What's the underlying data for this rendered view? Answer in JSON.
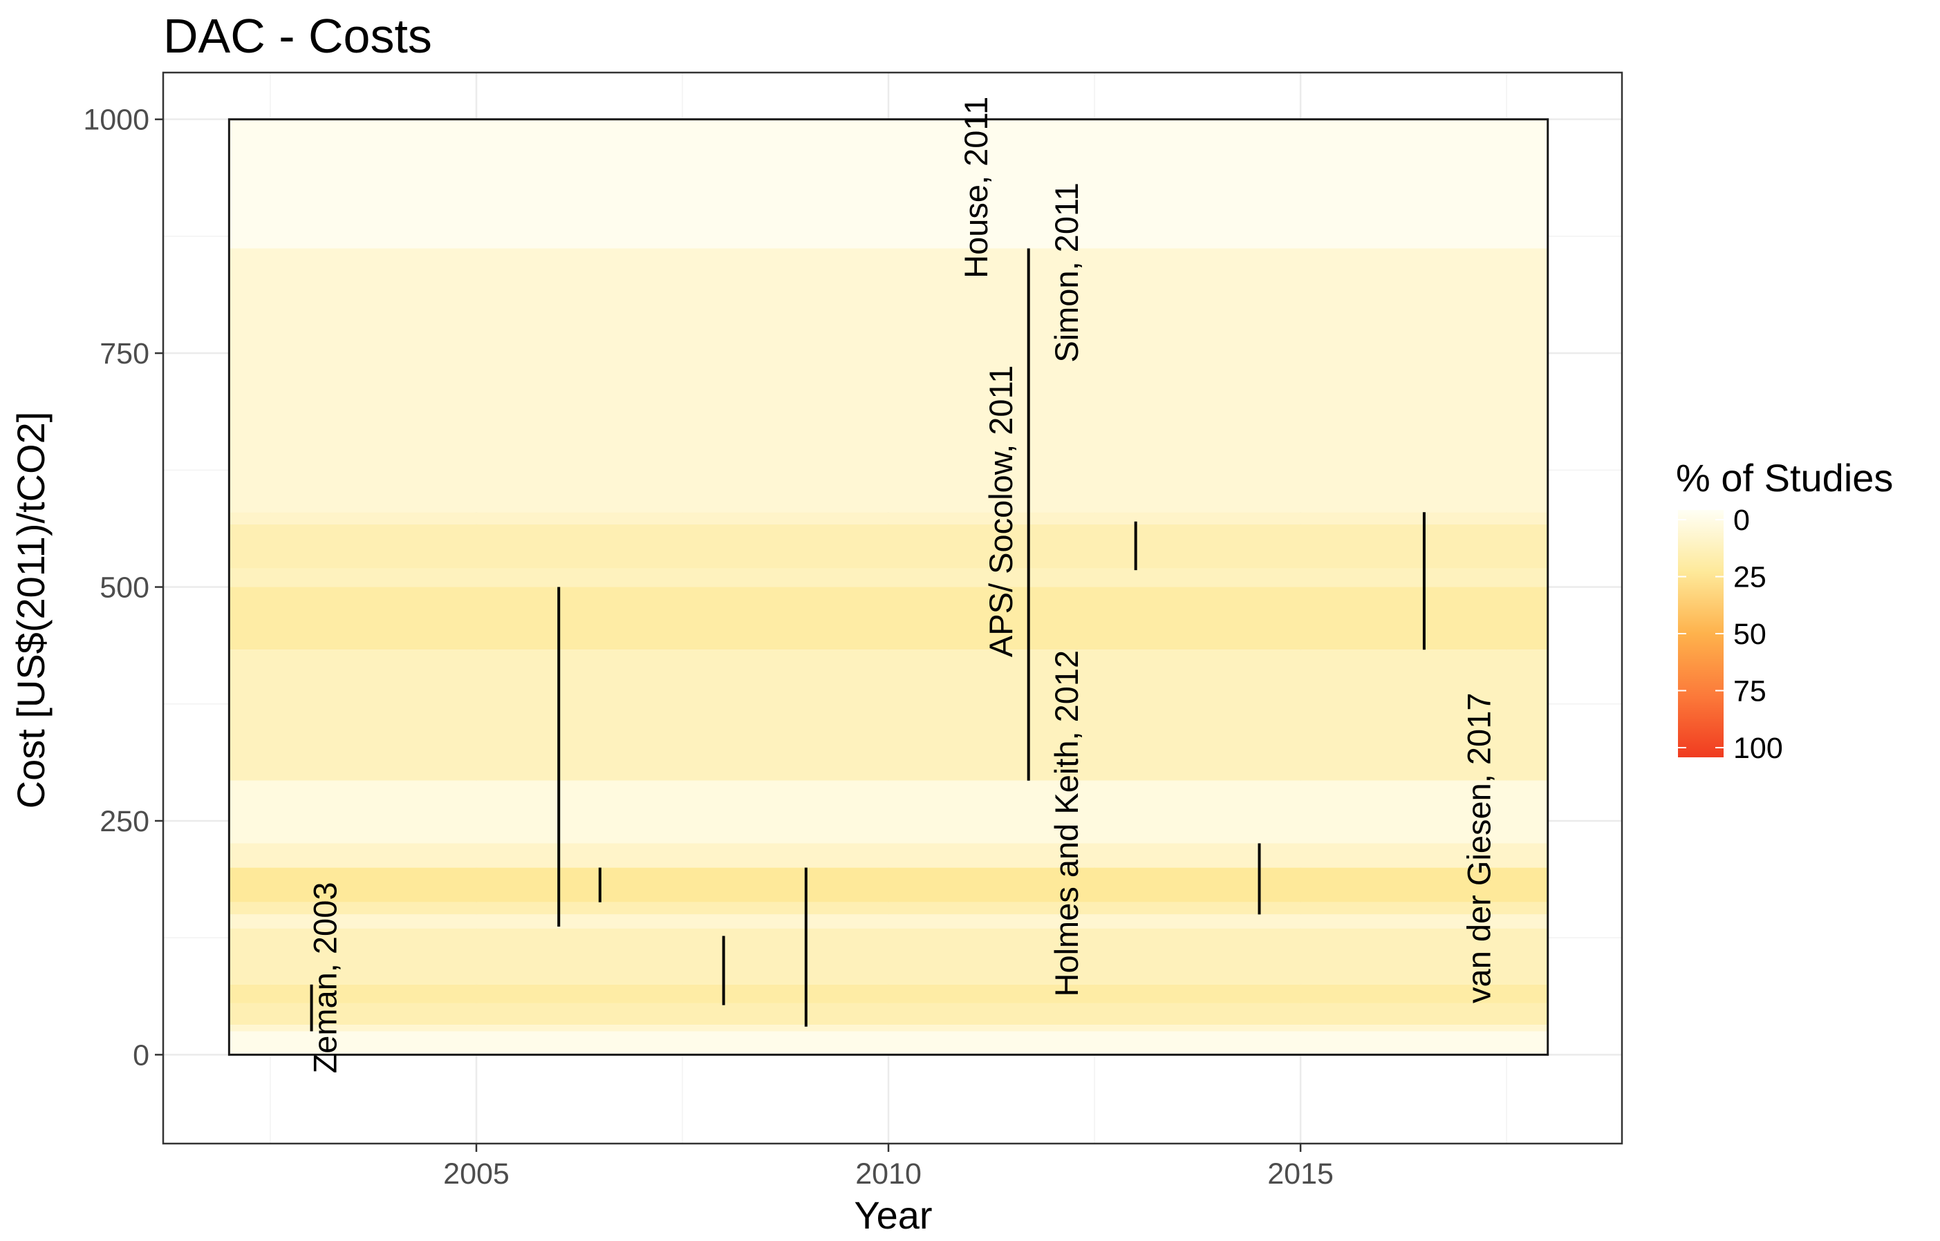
{
  "chart_data": {
    "type": "heatmap",
    "title": "DAC - Costs",
    "xlabel": "Year",
    "ylabel": "Cost [US$(2011)/tCO2]",
    "xlim": [
      2001.2,
      2018.9
    ],
    "ylim": [
      -95,
      1050
    ],
    "x_ticks": [
      2005,
      2010,
      2015
    ],
    "y_ticks": [
      0,
      250,
      500,
      750,
      1000
    ],
    "grid": true,
    "legend": {
      "title": "% of Studies",
      "position": "right",
      "min": 0,
      "max": 100,
      "breaks": [
        0,
        25,
        50,
        75,
        100
      ],
      "colors": [
        "#FFFFF5",
        "#FEE99A",
        "#FEB24C",
        "#FC7A3A",
        "#F03B20"
      ]
    },
    "heatmap_area": {
      "x": [
        2002,
        2018
      ],
      "y": [
        0,
        1000
      ]
    },
    "bands": [
      {
        "y0": 862,
        "y1": 1000,
        "pct": 2
      },
      {
        "y0": 580,
        "y1": 862,
        "pct": 9
      },
      {
        "y0": 567,
        "y1": 580,
        "pct": 12
      },
      {
        "y0": 520,
        "y1": 567,
        "pct": 18
      },
      {
        "y0": 500,
        "y1": 520,
        "pct": 15
      },
      {
        "y0": 433,
        "y1": 500,
        "pct": 22
      },
      {
        "y0": 293,
        "y1": 433,
        "pct": 15
      },
      {
        "y0": 226,
        "y1": 293,
        "pct": 6
      },
      {
        "y0": 200,
        "y1": 226,
        "pct": 12
      },
      {
        "y0": 163,
        "y1": 200,
        "pct": 25
      },
      {
        "y0": 150,
        "y1": 163,
        "pct": 18
      },
      {
        "y0": 135,
        "y1": 150,
        "pct": 10
      },
      {
        "y0": 75,
        "y1": 135,
        "pct": 16
      },
      {
        "y0": 55,
        "y1": 75,
        "pct": 22
      },
      {
        "y0": 32,
        "y1": 55,
        "pct": 18
      },
      {
        "y0": 25,
        "y1": 32,
        "pct": 10
      },
      {
        "y0": 0,
        "y1": 25,
        "pct": 3
      }
    ],
    "ranges": [
      {
        "x": 2003,
        "ymin": 25,
        "ymax": 75
      },
      {
        "x": 2006,
        "ymin": 137,
        "ymax": 500
      },
      {
        "x": 2006.5,
        "ymin": 163,
        "ymax": 200
      },
      {
        "x": 2008,
        "ymin": 53,
        "ymax": 127
      },
      {
        "x": 2009,
        "ymin": 30,
        "ymax": 200
      },
      {
        "x": 2011.7,
        "ymin": 293,
        "ymax": 862
      },
      {
        "x": 2013,
        "ymin": 518,
        "ymax": 570
      },
      {
        "x": 2014.5,
        "ymin": 150,
        "ymax": 226
      },
      {
        "x": 2016.5,
        "ymin": 433,
        "ymax": 580
      }
    ],
    "annotations": [
      {
        "text": "Zeman, 2003",
        "x": 2003.3,
        "y": -20
      },
      {
        "text": "House, 2011",
        "x": 2011.2,
        "y": 830
      },
      {
        "text": "APS/ Socolow, 2011",
        "x": 2011.5,
        "y": 425
      },
      {
        "text": "Simon, 2011",
        "x": 2012.3,
        "y": 740
      },
      {
        "text": "Holmes and Keith, 2012",
        "x": 2012.3,
        "y": 62
      },
      {
        "text": "van der Giesen, 2017",
        "x": 2017.3,
        "y": 55
      }
    ]
  }
}
